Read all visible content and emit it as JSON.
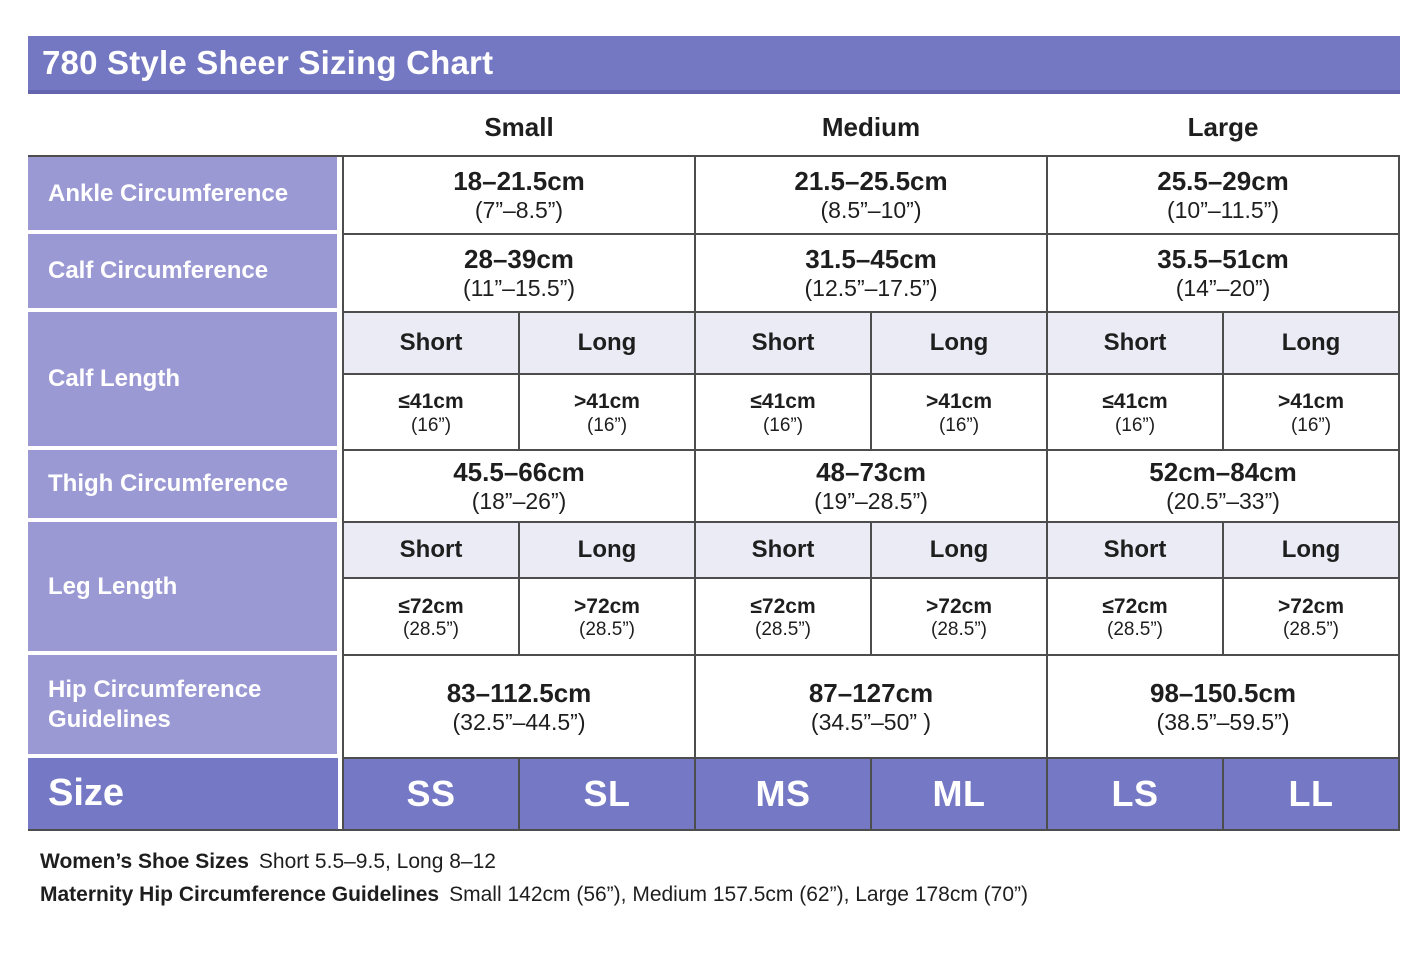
{
  "page": {
    "title": "780 Style Sheer Sizing Chart"
  },
  "columns": {
    "groups": [
      "Small",
      "Medium",
      "Large"
    ]
  },
  "subheads": {
    "short": "Short",
    "long": "Long"
  },
  "table": {
    "rows": [
      {
        "label": "Ankle Circumference",
        "cells": [
          {
            "cm": "18–21.5cm",
            "in": "(7”–8.5”)"
          },
          {
            "cm": "21.5–25.5cm",
            "in": "(8.5”–10”)"
          },
          {
            "cm": "25.5–29cm",
            "in": "(10”–11.5”)"
          }
        ]
      },
      {
        "label": "Calf Circumference",
        "cells": [
          {
            "cm": "28–39cm",
            "in": "(11”–15.5”)"
          },
          {
            "cm": "31.5–45cm",
            "in": "(12.5”–17.5”)"
          },
          {
            "cm": "35.5–51cm",
            "in": "(14”–20”)"
          }
        ]
      },
      {
        "label": "Calf Length",
        "subheads": [
          "Short",
          "Long",
          "Short",
          "Long",
          "Short",
          "Long"
        ],
        "cells": [
          {
            "cm": "≤41cm",
            "in": "(16”)"
          },
          {
            "cm": ">41cm",
            "in": "(16”)"
          },
          {
            "cm": "≤41cm",
            "in": "(16”)"
          },
          {
            "cm": ">41cm",
            "in": "(16”)"
          },
          {
            "cm": "≤41cm",
            "in": "(16”)"
          },
          {
            "cm": ">41cm",
            "in": "(16”)"
          }
        ]
      },
      {
        "label": "Thigh Circumference",
        "cells": [
          {
            "cm": "45.5–66cm",
            "in": "(18”–26”)"
          },
          {
            "cm": "48–73cm",
            "in": "(19”–28.5”)"
          },
          {
            "cm": "52cm–84cm",
            "in": "(20.5”–33”)"
          }
        ]
      },
      {
        "label": "Leg Length",
        "subheads": [
          "Short",
          "Long",
          "Short",
          "Long",
          "Short",
          "Long"
        ],
        "cells": [
          {
            "cm": "≤72cm",
            "in": "(28.5”)"
          },
          {
            "cm": ">72cm",
            "in": "(28.5”)"
          },
          {
            "cm": "≤72cm",
            "in": "(28.5”)"
          },
          {
            "cm": ">72cm",
            "in": "(28.5”)"
          },
          {
            "cm": "≤72cm",
            "in": "(28.5”)"
          },
          {
            "cm": ">72cm",
            "in": "(28.5”)"
          }
        ]
      },
      {
        "label": "Hip Circumference Guidelines",
        "cells": [
          {
            "cm": "83–112.5cm",
            "in": "(32.5”–44.5”)"
          },
          {
            "cm": "87–127cm",
            "in": "(34.5”–50” )"
          },
          {
            "cm": "98–150.5cm",
            "in": "(38.5”–59.5”)"
          }
        ]
      },
      {
        "label": "Size",
        "sizes": [
          "SS",
          "SL",
          "MS",
          "ML",
          "LS",
          "LL"
        ]
      }
    ]
  },
  "footnotes": {
    "shoe_label": "Women’s Shoe Sizes",
    "shoe_text": "Short 5.5–9.5, Long 8–12",
    "maternity_label": "Maternity Hip Circumference Guidelines",
    "maternity_text": "Small 142cm (56”), Medium 157.5cm (62”), Large 178cm (70”)"
  },
  "colors": {
    "title_bar": "#7477C2",
    "row_label": "#9B99D4",
    "size_row": "#7578C4",
    "subheader_bg": "#EBEBF6",
    "grid_border": "#4D4D4D"
  }
}
